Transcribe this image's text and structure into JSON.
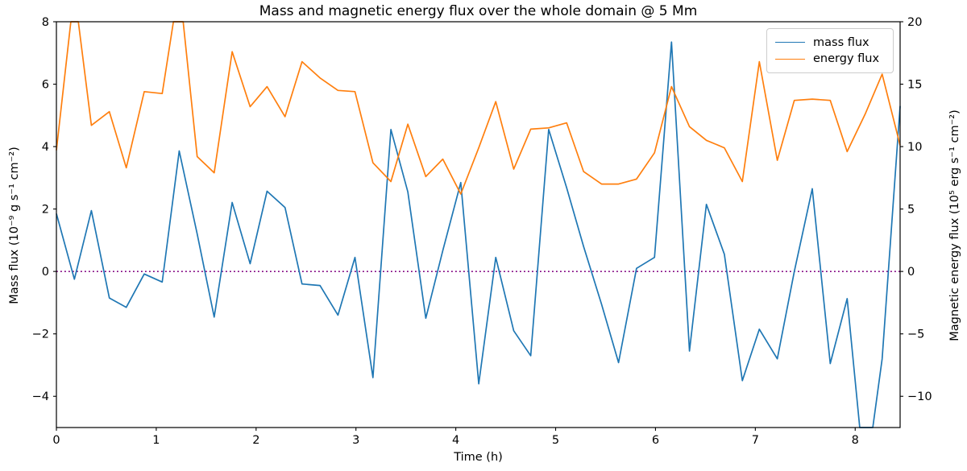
{
  "figure": {
    "title": "Mass and magnetic energy flux over the whole domain @ 5 Mm"
  },
  "chart_data": {
    "type": "line",
    "title": "Mass and magnetic energy flux over the whole domain @ 5 Mm",
    "xlabel": "Time (h)",
    "ylabel_left": "Mass flux (10⁻⁹ g s⁻¹ cm⁻²)",
    "ylabel_right": "Magnetic energy flux (10⁵ erg s⁻¹ cm⁻²)",
    "xlim": [
      0,
      8.45
    ],
    "ylim_left": [
      -5,
      8
    ],
    "ylim_right": [
      -12.5,
      20
    ],
    "xticks": [
      0,
      1,
      2,
      3,
      4,
      5,
      6,
      7,
      8
    ],
    "yticks_left": [
      8,
      6,
      4,
      2,
      0,
      -2,
      -4
    ],
    "yticks_right": [
      20,
      15,
      10,
      5,
      0,
      -5,
      -10
    ],
    "grid": false,
    "legend_position": "upper right",
    "legend": [
      "mass flux",
      "energy flux"
    ],
    "colors": {
      "mass_flux": "#1f77b4",
      "energy_flux": "#ff7f0e",
      "zero_line": "#800080",
      "spine": "#000000"
    },
    "zero_line": {
      "y": 0,
      "style": "dotted",
      "axis": "left"
    },
    "x": [
      0.0,
      0.18,
      0.35,
      0.53,
      0.7,
      0.88,
      1.06,
      1.23,
      1.41,
      1.58,
      1.76,
      1.94,
      2.11,
      2.29,
      2.46,
      2.64,
      2.82,
      2.99,
      3.17,
      3.35,
      3.52,
      3.7,
      3.87,
      4.05,
      4.23,
      4.4,
      4.58,
      4.75,
      4.93,
      5.11,
      5.28,
      5.46,
      5.63,
      5.81,
      5.99,
      6.16,
      6.34,
      6.51,
      6.69,
      6.87,
      7.04,
      7.22,
      7.39,
      7.57,
      7.75,
      7.92,
      8.1,
      8.27,
      8.45
    ],
    "series": [
      {
        "name": "mass flux",
        "axis": "left",
        "units": "10⁻⁹ g s⁻¹ cm⁻²",
        "values": [
          1.85,
          -0.25,
          1.95,
          -0.85,
          -1.15,
          -0.08,
          -0.34,
          3.86,
          1.2,
          -1.46,
          2.21,
          0.25,
          2.57,
          2.05,
          -0.4,
          -0.45,
          -1.4,
          0.45,
          -3.4,
          4.55,
          2.55,
          -1.5,
          0.67,
          2.85,
          -3.6,
          0.45,
          -1.9,
          -2.7,
          4.55,
          2.68,
          0.8,
          -1.05,
          -2.92,
          0.1,
          0.45,
          7.35,
          -2.55,
          2.15,
          0.55,
          -3.5,
          -1.85,
          -2.8,
          0.0,
          2.65,
          -2.95,
          -0.87,
          -6.8,
          -2.8,
          5.3
        ]
      },
      {
        "name": "energy flux",
        "axis": "right",
        "units": "10⁵ erg s⁻¹ cm⁻²",
        "values": [
          9.7,
          22.5,
          11.7,
          12.8,
          8.3,
          14.4,
          14.25,
          23.0,
          9.2,
          7.9,
          17.6,
          13.2,
          14.8,
          12.4,
          16.8,
          15.5,
          14.5,
          14.4,
          8.7,
          7.2,
          11.8,
          7.6,
          9.0,
          6.2,
          9.9,
          13.6,
          8.2,
          11.4,
          11.5,
          11.9,
          8.0,
          7.0,
          7.0,
          7.4,
          9.5,
          14.8,
          11.6,
          10.5,
          9.9,
          7.2,
          16.8,
          8.9,
          13.7,
          13.8,
          13.7,
          9.6,
          12.6,
          15.8,
          10.1
        ]
      }
    ]
  }
}
